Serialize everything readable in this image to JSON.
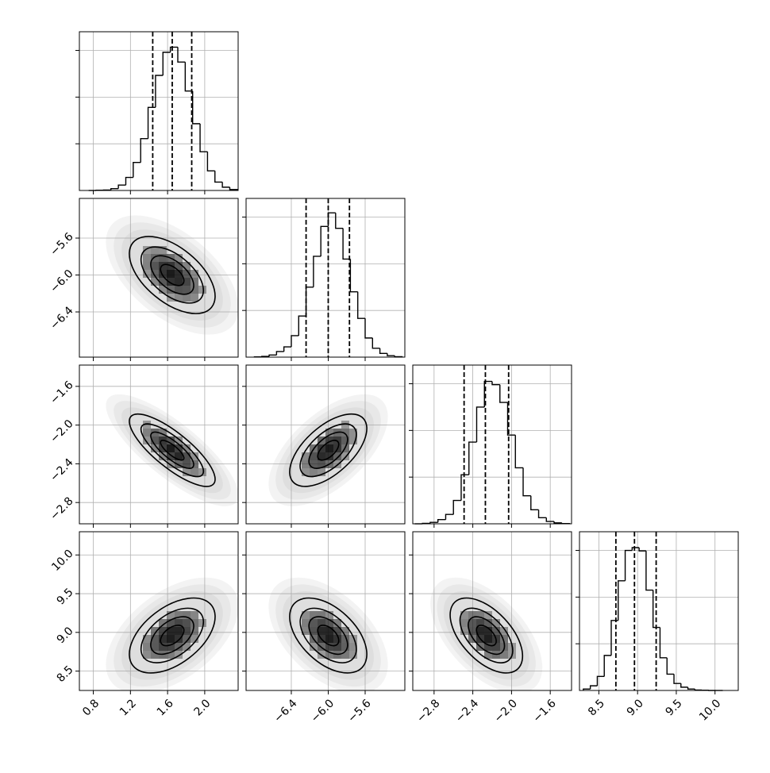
{
  "chart_data": {
    "type": "corner",
    "grid": true,
    "line_color": "#000000",
    "grid_color": "#b0b0b0",
    "contour_levels": [
      0.6,
      1.1,
      1.6,
      2.2
    ],
    "params": [
      {
        "xlim": [
          0.65,
          2.36
        ],
        "xticks": [
          0.8,
          1.2,
          1.6,
          {
            "value": 2,
            "label": "2.0"
          }
        ],
        "mean": 1.65,
        "sd": 0.21,
        "quantiles": [
          1.44,
          1.65,
          1.86
        ],
        "bins": [
          0.75,
          0.83,
          0.91,
          0.99,
          1.07,
          1.15,
          1.23,
          1.31,
          1.39,
          1.47,
          1.55,
          1.63,
          1.71,
          1.79,
          1.87,
          1.95,
          2.03,
          2.11,
          2.19,
          2.27,
          2.35
        ],
        "counts": [
          0,
          1,
          2,
          8,
          23,
          56,
          120,
          222,
          356,
          493,
          592,
          614,
          550,
          426,
          286,
          166,
          84,
          36,
          14,
          4
        ],
        "hist_ylim": [
          0,
          680
        ],
        "hist_yticks": [
          200,
          400,
          600
        ]
      },
      {
        "xlim": [
          -6.89,
          -5.17
        ],
        "xticks": [
          {
            "value": -6.4,
            "label": "−6.4"
          },
          {
            "value": -6,
            "label": "−6.0"
          },
          {
            "value": -5.6,
            "label": "−5.6"
          }
        ],
        "mean": -6.0,
        "sd": 0.19,
        "quantiles": [
          -6.24,
          -6.0,
          -5.77
        ],
        "bins": [
          -6.8,
          -6.72,
          -6.64,
          -6.56,
          -6.48,
          -6.4,
          -6.32,
          -6.24,
          -6.16,
          -6.08,
          -6.0,
          -5.92,
          -5.84,
          -5.76,
          -5.68,
          -5.6,
          -5.52,
          -5.44,
          -5.36,
          -5.28,
          -5.2
        ],
        "counts": [
          1,
          3,
          9,
          24,
          44,
          92,
          176,
          300,
          432,
          560,
          618,
          552,
          420,
          280,
          166,
          82,
          38,
          16,
          6,
          2
        ],
        "hist_ylim": [
          0,
          680
        ],
        "hist_yticks": [
          200,
          400,
          600
        ]
      },
      {
        "xlim": [
          -3.02,
          -1.38
        ],
        "xticks": [
          {
            "value": -2.8,
            "label": "−2.8"
          },
          {
            "value": -2.4,
            "label": "−2.4"
          },
          {
            "value": -2,
            "label": "−2.0"
          },
          {
            "value": -1.6,
            "label": "−1.6"
          }
        ],
        "mean": -2.26,
        "sd": 0.17,
        "quantiles": [
          -2.49,
          -2.27,
          -2.03
        ],
        "bins": [
          -3.0,
          -2.92,
          -2.84,
          -2.76,
          -2.68,
          -2.6,
          -2.52,
          -2.44,
          -2.36,
          -2.28,
          -2.2,
          -2.12,
          -2.04,
          -1.96,
          -1.88,
          -1.8,
          -1.72,
          -1.64,
          -1.56,
          -1.48,
          -1.4
        ],
        "counts": [
          0,
          2,
          6,
          18,
          40,
          100,
          210,
          350,
          500,
          610,
          596,
          520,
          380,
          240,
          120,
          60,
          26,
          10,
          4,
          1
        ],
        "hist_ylim": [
          0,
          680
        ],
        "hist_yticks": [
          200,
          400,
          600
        ]
      },
      {
        "xlim": [
          8.25,
          10.3
        ],
        "xticks": [
          8.5,
          {
            "value": 9,
            "label": "9.0"
          },
          9.5,
          {
            "value": 10,
            "label": "10.0"
          }
        ],
        "mean": 8.96,
        "sd": 0.22,
        "quantiles": [
          8.72,
          8.96,
          9.24
        ],
        "bins": [
          8.3,
          8.39,
          8.48,
          8.57,
          8.66,
          8.75,
          8.84,
          8.93,
          9.02,
          9.11,
          9.2,
          9.29,
          9.38,
          9.47,
          9.56,
          9.65,
          9.74,
          9.83,
          9.92,
          10.01,
          10.1
        ],
        "counts": [
          6,
          20,
          60,
          150,
          300,
          470,
          600,
          612,
          598,
          430,
          270,
          140,
          70,
          30,
          14,
          6,
          2,
          1,
          0,
          0
        ],
        "hist_ylim": [
          0,
          680
        ],
        "hist_yticks": [
          200,
          400,
          600
        ]
      }
    ],
    "pairs": [
      {
        "x": 0,
        "y": 1,
        "corr": -0.55
      },
      {
        "x": 0,
        "y": 2,
        "corr": -0.8
      },
      {
        "x": 1,
        "y": 2,
        "corr": 0.6
      },
      {
        "x": 0,
        "y": 3,
        "corr": 0.5
      },
      {
        "x": 1,
        "y": 3,
        "corr": -0.5
      },
      {
        "x": 2,
        "y": 3,
        "corr": -0.55
      }
    ]
  }
}
